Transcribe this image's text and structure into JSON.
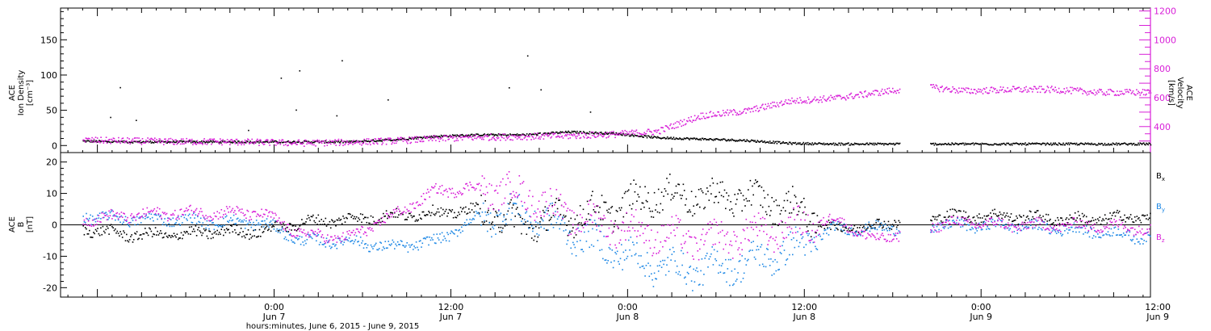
{
  "colors": {
    "axis": "#000000",
    "density": "#000000",
    "velocity": "#d81fd8",
    "bx": "#000000",
    "by": "#1e88e5",
    "bz": "#d81fd8"
  },
  "chart_data": [
    {
      "type": "scatter",
      "panel": "top",
      "ylabel_left": [
        "ACE",
        "Ion Density",
        "[cm⁻³]"
      ],
      "ylabel_right": [
        "ACE",
        "Velocity",
        "[km/s]"
      ],
      "ylim_left": [
        -10,
        195
      ],
      "ylim_right": [
        220,
        1220
      ],
      "left_ticks": [
        0,
        50,
        100,
        150
      ],
      "right_ticks": [
        400,
        600,
        800,
        1000,
        1200
      ],
      "xlim_hours": [
        -14.5,
        59.5
      ],
      "series": [
        {
          "axis": "left",
          "color_key": "density",
          "x_hours": [
            -13,
            -10,
            -7,
            -4,
            -1,
            2,
            5,
            8,
            11,
            14,
            17,
            20,
            23,
            26,
            29,
            32,
            35,
            38,
            41,
            44,
            47,
            50,
            53,
            56,
            59.5
          ],
          "y": [
            7,
            6,
            6,
            6,
            6,
            6,
            6,
            9,
            14,
            16,
            16,
            20,
            18,
            12,
            10,
            8,
            4,
            3,
            3,
            3,
            3,
            3,
            3,
            3,
            3
          ]
        },
        {
          "axis": "right",
          "color_key": "velocity",
          "x_hours": [
            -13,
            -10,
            -7,
            -4,
            -1,
            2,
            5,
            8,
            11,
            14,
            17,
            20,
            23,
            26,
            29,
            32,
            35,
            38,
            41,
            44,
            47,
            50,
            53,
            56,
            59.5
          ],
          "y": [
            310,
            305,
            300,
            300,
            295,
            290,
            295,
            305,
            320,
            330,
            335,
            340,
            350,
            370,
            480,
            510,
            580,
            600,
            640,
            680,
            650,
            660,
            660,
            640,
            640
          ]
        }
      ],
      "gaps_hours": [
        [
          42.5,
          44.5
        ]
      ]
    },
    {
      "type": "scatter",
      "panel": "bottom",
      "ylabel": [
        "ACE",
        "B",
        "[nT]"
      ],
      "ylim": [
        -23,
        23
      ],
      "yticks": [
        -20,
        -10,
        0,
        10,
        20
      ],
      "xlim_hours": [
        -14.5,
        59.5
      ],
      "legend": [
        "Bx",
        "By",
        "Bz"
      ],
      "series": [
        {
          "name": "Bx",
          "color_key": "bx",
          "x_hours": [
            -13,
            -10,
            -7,
            -4,
            -1,
            2,
            5,
            8,
            11,
            14,
            17,
            20,
            23,
            26,
            29,
            32,
            35,
            38,
            41,
            44,
            47,
            50,
            53,
            56,
            59.5
          ],
          "y": [
            -1,
            -3,
            -3,
            -2,
            -2,
            1,
            2,
            3,
            4,
            5,
            0,
            3,
            5,
            10,
            9,
            9,
            6,
            -1,
            0,
            3,
            3,
            3,
            2,
            2,
            3
          ]
        },
        {
          "name": "By",
          "color_key": "by",
          "x_hours": [
            -13,
            -10,
            -7,
            -4,
            -1,
            2,
            5,
            8,
            11,
            14,
            17,
            20,
            23,
            26,
            29,
            32,
            35,
            38,
            41,
            44,
            47,
            50,
            53,
            56,
            59.5
          ],
          "y": [
            3,
            2,
            2,
            1,
            1,
            -5,
            -5,
            -7,
            -5,
            3,
            4,
            -2,
            -8,
            -13,
            -14,
            -12,
            -8,
            -1,
            -1,
            0,
            0,
            0,
            -1,
            -2,
            -4
          ]
        },
        {
          "name": "Bz",
          "color_key": "bz",
          "x_hours": [
            -13,
            -10,
            -7,
            -4,
            -1,
            2,
            5,
            8,
            11,
            14,
            17,
            20,
            23,
            26,
            29,
            32,
            35,
            38,
            41,
            44,
            47,
            50,
            53,
            56,
            59.5
          ],
          "y": [
            2,
            3,
            4,
            4,
            4,
            -3,
            -4,
            3,
            11,
            12,
            10,
            3,
            0,
            -3,
            -5,
            -3,
            -1,
            2,
            -5,
            0,
            1,
            0,
            0,
            0,
            -1
          ]
        }
      ],
      "gaps_hours": [
        [
          42.5,
          44.5
        ]
      ],
      "xtick_labels": [
        {
          "hours": 0,
          "time": "0:00",
          "date": "Jun 7"
        },
        {
          "hours": 12,
          "time": "12:00",
          "date": "Jun 7"
        },
        {
          "hours": 24,
          "time": "0:00",
          "date": "Jun 8"
        },
        {
          "hours": 36,
          "time": "12:00",
          "date": "Jun 8"
        },
        {
          "hours": 48,
          "time": "0:00",
          "date": "Jun 9"
        },
        {
          "hours": 60,
          "time": "12:00",
          "date": "Jun 9"
        }
      ],
      "xlabel": "hours:minutes, June  6, 2015 - June  9, 2015"
    }
  ]
}
